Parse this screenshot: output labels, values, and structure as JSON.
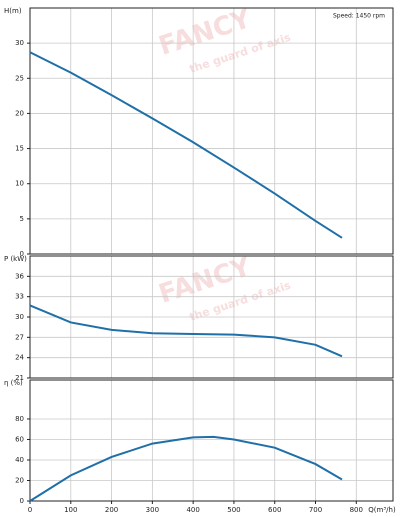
{
  "chart_data": [
    {
      "type": "line",
      "y_label": "H(m)",
      "annotation": "Speed: 1450 rpm",
      "watermark": [
        "FANCY",
        "the guard of axis"
      ],
      "xlim": [
        0,
        890
      ],
      "ylim": [
        0,
        35
      ],
      "yticks": [
        0,
        5,
        10,
        15,
        20,
        25,
        30
      ],
      "grid": true,
      "x": [
        0,
        100,
        200,
        300,
        400,
        500,
        600,
        700,
        765
      ],
      "series": [
        {
          "color": "#1f6fa8",
          "values": [
            28.7,
            25.8,
            22.6,
            19.3,
            15.9,
            12.3,
            8.6,
            4.7,
            2.3
          ]
        }
      ]
    },
    {
      "type": "line",
      "y_label": "P (kW)",
      "watermark": [
        "FANCY",
        "the guard of axis"
      ],
      "xlim": [
        0,
        890
      ],
      "ylim": [
        21,
        39
      ],
      "yticks": [
        21,
        24,
        27,
        30,
        33,
        36
      ],
      "grid": true,
      "x": [
        0,
        100,
        200,
        300,
        400,
        500,
        600,
        700,
        765
      ],
      "series": [
        {
          "color": "#1f6fa8",
          "values": [
            31.7,
            29.2,
            28.1,
            27.6,
            27.5,
            27.4,
            27.0,
            25.9,
            24.2
          ]
        }
      ]
    },
    {
      "type": "line",
      "y_label": "η (%)",
      "x_label": "Q(m³/h)",
      "xlim": [
        0,
        890
      ],
      "ylim": [
        0,
        118
      ],
      "yticks": [
        0,
        20,
        40,
        60,
        80
      ],
      "grid": true,
      "xticks": [
        0,
        100,
        200,
        300,
        400,
        500,
        600,
        700,
        800
      ],
      "x": [
        0,
        100,
        200,
        300,
        400,
        450,
        500,
        600,
        700,
        765
      ],
      "series": [
        {
          "color": "#1f6fa8",
          "values": [
            0,
            25,
            43,
            56,
            62,
            62.5,
            60,
            52,
            36,
            21
          ]
        }
      ]
    }
  ]
}
